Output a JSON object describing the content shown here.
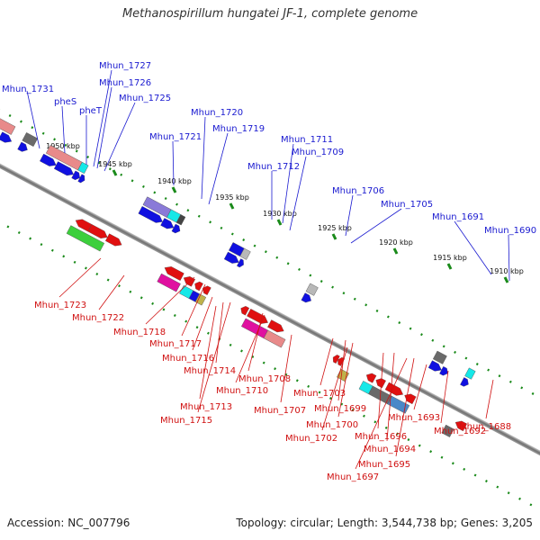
{
  "title": "Methanospirillum hungatei JF-1, complete genome",
  "footer": {
    "accession": "Accession: NC_007796",
    "summary": "Topology: circular; Length: 3,544,738 bp; Genes: 3,205"
  },
  "colors": {
    "top_label": "#1a1ad0",
    "bottom_label": "#d01010",
    "backbone": "#8a8a8a",
    "tick_dots": "#1a8a1a"
  },
  "ticks": [
    {
      "label": "1950 kbp"
    },
    {
      "label": "1945 kbp"
    },
    {
      "label": "1940 kbp"
    },
    {
      "label": "1935 kbp"
    },
    {
      "label": "1930 kbp"
    },
    {
      "label": "1925 kbp"
    },
    {
      "label": "1920 kbp"
    },
    {
      "label": "1915 kbp"
    },
    {
      "label": "1910 kbp"
    }
  ],
  "top_genes": [
    {
      "name": "Mhun_1731"
    },
    {
      "name": "pheS"
    },
    {
      "name": "pheT"
    },
    {
      "name": "Mhun_1727"
    },
    {
      "name": "Mhun_1726"
    },
    {
      "name": "Mhun_1725"
    },
    {
      "name": "Mhun_1721"
    },
    {
      "name": "Mhun_1720"
    },
    {
      "name": "Mhun_1719"
    },
    {
      "name": "Mhun_1712"
    },
    {
      "name": "Mhun_1711"
    },
    {
      "name": "Mhun_1709"
    },
    {
      "name": "Mhun_1706"
    },
    {
      "name": "Mhun_1705"
    },
    {
      "name": "Mhun_1691"
    },
    {
      "name": "Mhun_1690"
    }
  ],
  "bottom_genes": [
    {
      "name": "Mhun_1723"
    },
    {
      "name": "Mhun_1722"
    },
    {
      "name": "Mhun_1718"
    },
    {
      "name": "Mhun_1717"
    },
    {
      "name": "Mhun_1716"
    },
    {
      "name": "Mhun_1714"
    },
    {
      "name": "Mhun_1713"
    },
    {
      "name": "Mhun_1715"
    },
    {
      "name": "Mhun_1708"
    },
    {
      "name": "Mhun_1710"
    },
    {
      "name": "Mhun_1707"
    },
    {
      "name": "Mhun_1703"
    },
    {
      "name": "Mhun_1699"
    },
    {
      "name": "Mhun_1700"
    },
    {
      "name": "Mhun_1702"
    },
    {
      "name": "Mhun_1693"
    },
    {
      "name": "Mhun_1696"
    },
    {
      "name": "Mhun_1694"
    },
    {
      "name": "Mhun_1692"
    },
    {
      "name": "Mhun_1695"
    },
    {
      "name": "Mhun_1697"
    },
    {
      "name": "Mhun_1688"
    }
  ]
}
